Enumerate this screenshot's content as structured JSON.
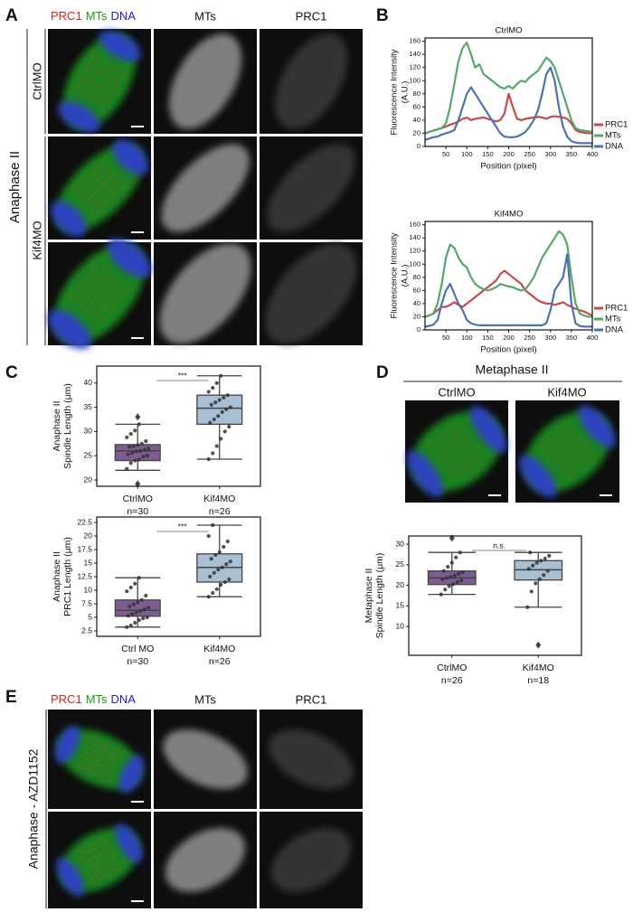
{
  "panel_labels": [
    "A",
    "B",
    "C",
    "D",
    "E"
  ],
  "panel_a": {
    "header": [
      "PRC1",
      "MTs",
      "DNA"
    ],
    "columns": [
      "MTs",
      "PRC1"
    ],
    "group": "Anaphase II",
    "rows": [
      "CtrlMO",
      "Kif4MO"
    ]
  },
  "panel_d": {
    "title": "Metaphase II",
    "columns": [
      "CtrlMO",
      "Kif4MO"
    ]
  },
  "panel_e": {
    "header": [
      "PRC1",
      "MTs",
      "DNA"
    ],
    "columns": [
      "MTs",
      "PRC1"
    ],
    "group": "Anaphase - AZD1152"
  },
  "chart_data": [
    {
      "type": "line",
      "title": "CtrlMO",
      "xlabel": "Position (pixel)",
      "ylabel": [
        "Fluorescence Intensity",
        "(A.U.)"
      ],
      "x": [
        0,
        10,
        20,
        30,
        40,
        50,
        60,
        70,
        80,
        90,
        100,
        110,
        120,
        130,
        140,
        150,
        160,
        170,
        180,
        190,
        200,
        210,
        220,
        230,
        240,
        250,
        260,
        270,
        280,
        290,
        300,
        310,
        320,
        330,
        340,
        350,
        360,
        370,
        380,
        390,
        400
      ],
      "xlim": [
        0,
        400
      ],
      "xticks": [
        50,
        100,
        150,
        200,
        250,
        300,
        350,
        400
      ],
      "ylim": [
        0,
        165
      ],
      "yticks": [
        0,
        20,
        40,
        60,
        80,
        100,
        120,
        140,
        160
      ],
      "series": [
        {
          "name": "PRC1",
          "color": "#c84a4a",
          "values": [
            20,
            22,
            24,
            26,
            28,
            30,
            33,
            35,
            38,
            42,
            44,
            40,
            42,
            43,
            44,
            42,
            40,
            38,
            40,
            50,
            80,
            60,
            42,
            40,
            42,
            43,
            44,
            45,
            44,
            42,
            45,
            46,
            45,
            44,
            42,
            35,
            25,
            22,
            21,
            20,
            20
          ]
        },
        {
          "name": "MTs",
          "color": "#55a868",
          "values": [
            20,
            22,
            24,
            26,
            28,
            35,
            60,
            95,
            130,
            150,
            158,
            140,
            120,
            125,
            110,
            105,
            100,
            95,
            90,
            88,
            92,
            88,
            95,
            100,
            98,
            105,
            110,
            115,
            125,
            135,
            130,
            120,
            100,
            80,
            60,
            40,
            28,
            25,
            24,
            23,
            22
          ]
        },
        {
          "name": "DNA",
          "color": "#4c72b0",
          "values": [
            10,
            12,
            14,
            15,
            18,
            20,
            22,
            25,
            40,
            60,
            80,
            90,
            80,
            70,
            60,
            50,
            40,
            30,
            20,
            15,
            14,
            14,
            15,
            18,
            22,
            30,
            40,
            55,
            80,
            110,
            120,
            100,
            60,
            30,
            15,
            8,
            6,
            5,
            5,
            5,
            5
          ]
        }
      ]
    },
    {
      "type": "line",
      "title": "Kif4MO",
      "xlabel": "Position (pixel)",
      "ylabel": [
        "Fluorescence Intensity",
        "(A.U.)"
      ],
      "x": [
        0,
        10,
        20,
        30,
        40,
        50,
        60,
        70,
        80,
        90,
        100,
        110,
        120,
        130,
        140,
        150,
        160,
        170,
        180,
        190,
        200,
        210,
        220,
        230,
        240,
        250,
        260,
        270,
        280,
        290,
        300,
        310,
        320,
        330,
        340,
        350,
        360,
        370,
        380,
        390,
        400
      ],
      "xlim": [
        0,
        400
      ],
      "xticks": [
        50,
        100,
        150,
        200,
        250,
        300,
        350,
        400
      ],
      "ylim": [
        0,
        165
      ],
      "yticks": [
        0,
        20,
        40,
        60,
        80,
        100,
        120,
        140,
        160
      ],
      "series": [
        {
          "name": "PRC1",
          "color": "#c84a4a",
          "values": [
            20,
            22,
            25,
            30,
            35,
            35,
            38,
            42,
            38,
            35,
            40,
            45,
            50,
            55,
            60,
            65,
            70,
            75,
            85,
            90,
            85,
            80,
            75,
            70,
            60,
            55,
            50,
            45,
            42,
            40,
            40,
            38,
            40,
            42,
            38,
            35,
            32,
            30,
            28,
            25,
            22
          ]
        },
        {
          "name": "MTs",
          "color": "#55a868",
          "values": [
            20,
            22,
            25,
            40,
            70,
            110,
            130,
            125,
            110,
            100,
            95,
            80,
            70,
            65,
            62,
            60,
            62,
            65,
            70,
            68,
            66,
            65,
            62,
            60,
            62,
            70,
            80,
            95,
            110,
            120,
            130,
            140,
            150,
            145,
            130,
            80,
            40,
            25,
            22,
            20,
            20
          ]
        },
        {
          "name": "DNA",
          "color": "#4c72b0",
          "values": [
            5,
            6,
            8,
            15,
            40,
            60,
            70,
            55,
            40,
            30,
            15,
            10,
            8,
            7,
            7,
            7,
            7,
            7,
            7,
            7,
            7,
            7,
            7,
            7,
            7,
            7,
            7,
            7,
            7,
            10,
            30,
            60,
            70,
            80,
            115,
            40,
            10,
            6,
            5,
            5,
            5
          ]
        }
      ]
    },
    {
      "type": "box",
      "ylabel": [
        "Anaphase II",
        "Spindle Length (μm)"
      ],
      "categories": [
        "CtrlMO",
        "Kif4MO"
      ],
      "n_labels": [
        "n=30",
        "n=26"
      ],
      "colors": [
        "#7d5c91",
        "#a9bfd4"
      ],
      "annotation": "***",
      "ylim": [
        18.7,
        43.5
      ],
      "yticks": [
        20,
        25,
        30,
        35,
        40
      ],
      "stats": [
        {
          "whisker_low": 22,
          "q1": 24,
          "median": 26,
          "q3": 27.3,
          "whisker_high": 31.5,
          "outliers": [
            33,
            19.2
          ]
        },
        {
          "whisker_low": 24.3,
          "q1": 31.5,
          "median": 34.8,
          "q3": 37.5,
          "whisker_high": 41.5,
          "outliers": []
        }
      ],
      "points": [
        [
          22.3,
          23.5,
          24,
          24.2,
          24.8,
          25,
          25.3,
          25.6,
          25.9,
          26,
          26.2,
          26.5,
          26.8,
          27,
          27.2,
          27.5,
          28,
          28.8,
          29.5,
          30.2,
          31.5
        ],
        [
          24.3,
          25.5,
          27,
          28.5,
          30,
          31,
          31.8,
          32.5,
          33.2,
          34,
          34.6,
          35,
          35.5,
          36,
          36.5,
          37,
          37.5,
          38.2,
          39,
          40,
          41.5
        ]
      ]
    },
    {
      "type": "box",
      "ylabel": [
        "Anaphase II",
        "PRC1 Length (μm)"
      ],
      "categories": [
        "Ctrl MO",
        "Kif4MO"
      ],
      "n_labels": [
        "n=30",
        "n=26"
      ],
      "colors": [
        "#7d5c91",
        "#a9bfd4"
      ],
      "annotation": "***",
      "ylim": [
        1.5,
        23.5
      ],
      "yticks": [
        2.5,
        5,
        7.5,
        10,
        12.5,
        15,
        17.5,
        20,
        22.5
      ],
      "stats": [
        {
          "whisker_low": 3.2,
          "q1": 5.2,
          "median": 6.3,
          "q3": 8.2,
          "whisker_high": 12.3,
          "outliers": []
        },
        {
          "whisker_low": 8.8,
          "q1": 11.5,
          "median": 14.2,
          "q3": 16.7,
          "whisker_high": 22,
          "outliers": []
        }
      ],
      "points": [
        [
          3.2,
          3.5,
          4,
          4.5,
          4.8,
          5,
          5.3,
          5.6,
          5.9,
          6.2,
          6.5,
          6.8,
          7,
          7.4,
          7.8,
          8.2,
          9,
          9.8,
          10.5,
          11.2,
          12.3
        ],
        [
          8.8,
          9.5,
          10.2,
          11,
          11.5,
          12,
          12.5,
          13.2,
          13.8,
          14.2,
          14.8,
          15.3,
          15.8,
          16.5,
          17,
          18,
          19,
          20,
          22
        ]
      ]
    },
    {
      "type": "box",
      "ylabel": [
        "Metaphase II",
        "Spindle Length (μm)"
      ],
      "categories": [
        "CtrlMO",
        "Kif4MO"
      ],
      "n_labels": [
        "n=26",
        "n=18"
      ],
      "colors": [
        "#7d5c91",
        "#a9bfd4"
      ],
      "annotation": "n.s.",
      "ylim": [
        3,
        32
      ],
      "yticks": [
        10,
        15,
        20,
        25,
        30
      ],
      "stats": [
        {
          "whisker_low": 17.8,
          "q1": 20.2,
          "median": 21.8,
          "q3": 23.5,
          "whisker_high": 28,
          "outliers": [
            31.5
          ]
        },
        {
          "whisker_low": 14.7,
          "q1": 21.3,
          "median": 23.8,
          "q3": 26,
          "whisker_high": 28,
          "outliers": [
            5.5
          ]
        }
      ],
      "points": [
        [
          17.8,
          19,
          19.8,
          20.3,
          20.8,
          21.2,
          21.5,
          21.8,
          22,
          22.4,
          22.8,
          23.2,
          23.5,
          24.5,
          25.5,
          26.8,
          28
        ],
        [
          14.7,
          18.5,
          20.5,
          21.5,
          22.5,
          23.5,
          24,
          24.8,
          25.5,
          26,
          26.5,
          27.2,
          28
        ]
      ]
    }
  ]
}
